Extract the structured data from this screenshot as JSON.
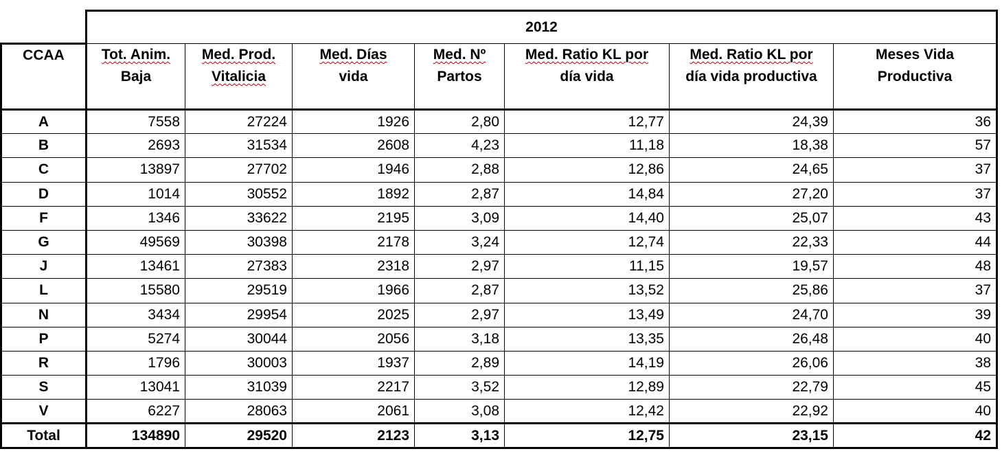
{
  "table": {
    "year": "2012",
    "headers": {
      "ccaa": "CCAA",
      "col1": [
        "Tot. Anim.",
        "Baja"
      ],
      "col2": [
        "Med. Prod.",
        "Vitalicia"
      ],
      "col3": [
        "Med. Días",
        "vida"
      ],
      "col4": [
        "Med. Nº",
        "Partos"
      ],
      "col5": [
        "Med. Ratio KL por",
        "día vida"
      ],
      "col6": [
        "Med. Ratio KL por",
        "día vida productiva"
      ],
      "col7": [
        "Meses Vida",
        "Productiva"
      ]
    },
    "rows": [
      [
        "A",
        "7558",
        "27224",
        "1926",
        "2,80",
        "12,77",
        "24,39",
        "36"
      ],
      [
        "B",
        "2693",
        "31534",
        "2608",
        "4,23",
        "11,18",
        "18,38",
        "57"
      ],
      [
        "C",
        "13897",
        "27702",
        "1946",
        "2,88",
        "12,86",
        "24,65",
        "37"
      ],
      [
        "D",
        "1014",
        "30552",
        "1892",
        "2,87",
        "14,84",
        "27,20",
        "37"
      ],
      [
        "F",
        "1346",
        "33622",
        "2195",
        "3,09",
        "14,40",
        "25,07",
        "43"
      ],
      [
        "G",
        "49569",
        "30398",
        "2178",
        "3,24",
        "12,74",
        "22,33",
        "44"
      ],
      [
        "J",
        "13461",
        "27383",
        "2318",
        "2,97",
        "11,15",
        "19,57",
        "48"
      ],
      [
        "L",
        "15580",
        "29519",
        "1966",
        "2,87",
        "13,52",
        "25,86",
        "37"
      ],
      [
        "N",
        "3434",
        "29954",
        "2025",
        "2,97",
        "13,49",
        "24,70",
        "39"
      ],
      [
        "P",
        "5274",
        "30044",
        "2056",
        "3,18",
        "13,35",
        "26,48",
        "40"
      ],
      [
        "R",
        "1796",
        "30003",
        "1937",
        "2,89",
        "14,19",
        "26,06",
        "38"
      ],
      [
        "S",
        "13041",
        "31039",
        "2217",
        "3,52",
        "12,89",
        "22,79",
        "45"
      ],
      [
        "V",
        "6227",
        "28063",
        "2061",
        "3,08",
        "12,42",
        "22,92",
        "40"
      ]
    ],
    "total": [
      "Total",
      "134890",
      "29520",
      "2123",
      "3,13",
      "12,75",
      "23,15",
      "42"
    ]
  }
}
